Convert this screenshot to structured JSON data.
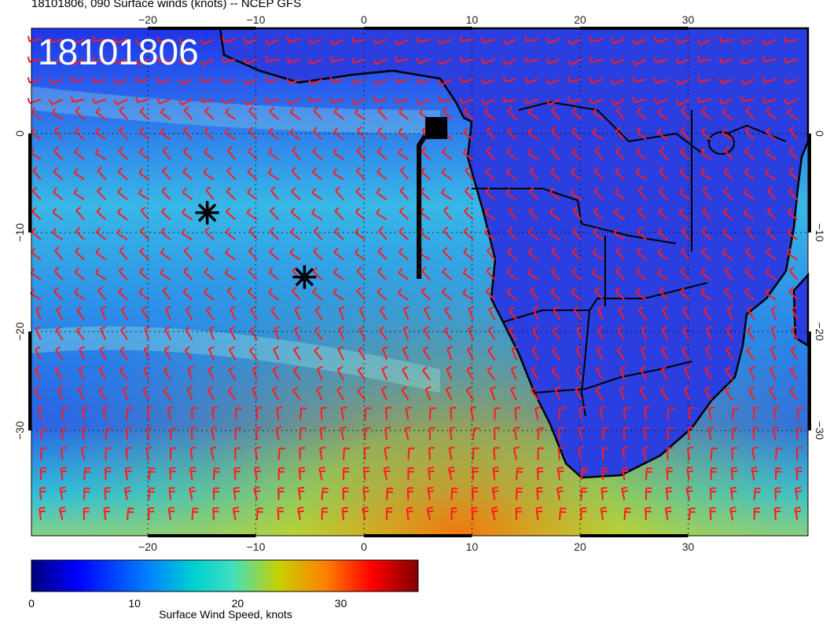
{
  "title": "18101806, 090 Surface winds (knots) -- NCEP GFS",
  "overlay_date": "18101806",
  "map": {
    "lon_ticks": [
      {
        "v": -20,
        "label": "−20"
      },
      {
        "v": -10,
        "label": "−10"
      },
      {
        "v": 0,
        "label": "0"
      },
      {
        "v": 10,
        "label": "10"
      },
      {
        "v": 20,
        "label": "20"
      },
      {
        "v": 30,
        "label": "30"
      }
    ],
    "lat_ticks": [
      {
        "v": 0,
        "label": "0"
      },
      {
        "v": -10,
        "label": "−10"
      },
      {
        "v": -20,
        "label": "−20"
      },
      {
        "v": -30,
        "label": "−30"
      }
    ],
    "markers": [
      {
        "name": "asterisk-marker",
        "lon": -14.5,
        "lat": -8.0
      },
      {
        "name": "asterisk-marker",
        "lon": -5.5,
        "lat": -14.5
      }
    ],
    "station": {
      "lon": 6.7,
      "lat": 0.4
    },
    "colors": {
      "wind_barb": "#ff1a1a",
      "land_outline": "#000000",
      "grid": "#000000"
    }
  },
  "colorbar": {
    "title": "Surface Wind Speed, knots",
    "ticks": [
      {
        "v": 0,
        "label": "0"
      },
      {
        "v": 10,
        "label": "10"
      },
      {
        "v": 20,
        "label": "20"
      },
      {
        "v": 30,
        "label": "30"
      }
    ],
    "range": [
      0,
      37.5
    ],
    "colormap": [
      "#00007f",
      "#0000ff",
      "#0080ff",
      "#00d0d0",
      "#40e0c0",
      "#c8d000",
      "#ff8000",
      "#ff0000",
      "#800000"
    ]
  }
}
